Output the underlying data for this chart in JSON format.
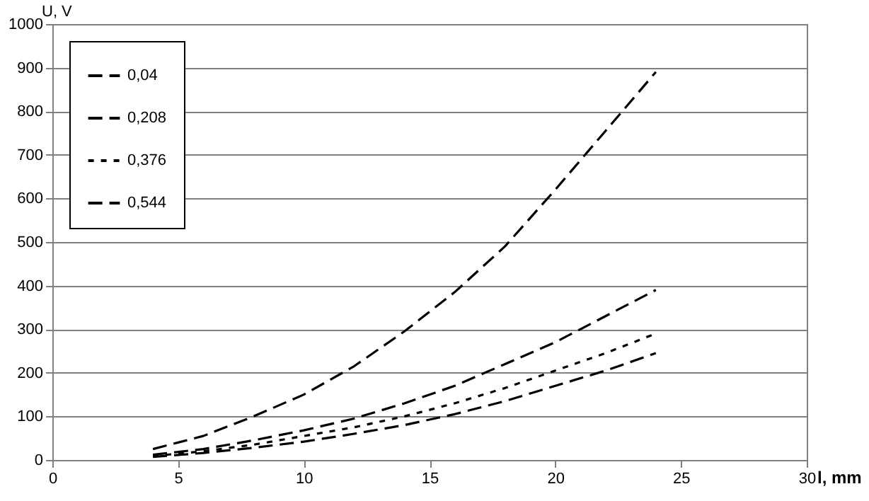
{
  "chart_data": {
    "type": "line",
    "xlabel": "l, mm",
    "ylabel": "U, V",
    "x": [
      4,
      6,
      8,
      10,
      12,
      14,
      16,
      18,
      20,
      22,
      24
    ],
    "series": [
      {
        "name": "0,04",
        "color": "#000000",
        "line_style": "dashed",
        "values": [
          25,
          55,
          100,
          150,
          215,
          295,
          385,
          490,
          620,
          755,
          890
        ]
      },
      {
        "name": "0,208",
        "color": "#000000",
        "line_style": "dashed",
        "values": [
          12,
          25,
          45,
          68,
          95,
          130,
          170,
          220,
          270,
          330,
          390
        ]
      },
      {
        "name": "0,376",
        "color": "#000000",
        "line_style": "dotted",
        "values": [
          9,
          20,
          35,
          55,
          75,
          100,
          130,
          165,
          205,
          245,
          290
        ]
      },
      {
        "name": "0,544",
        "color": "#000000",
        "line_style": "dashed",
        "values": [
          7,
          16,
          28,
          42,
          60,
          80,
          105,
          135,
          170,
          205,
          245
        ]
      }
    ],
    "xlim": [
      0,
      30
    ],
    "xticks": [
      0,
      5,
      10,
      15,
      20,
      25,
      30
    ],
    "ylim": [
      0,
      1000
    ],
    "yticks": [
      0,
      100,
      200,
      300,
      400,
      500,
      600,
      700,
      800,
      900,
      1000
    ],
    "grid": "y",
    "legend": "top left",
    "marker": "none"
  }
}
